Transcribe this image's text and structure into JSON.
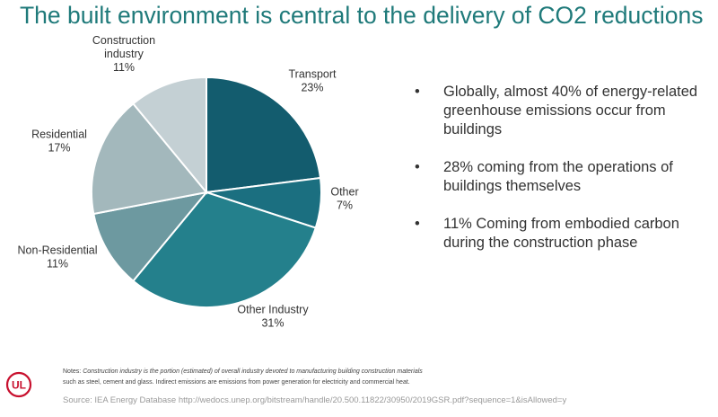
{
  "title": "The built environment is central to the delivery of CO2 reductions",
  "chart_data": {
    "type": "pie",
    "title": "",
    "slices": [
      {
        "name": "Transport",
        "value": 23,
        "label": "23%",
        "color": "#135c6e"
      },
      {
        "name": "Other",
        "value": 7,
        "label": "7%",
        "color": "#1b6f80"
      },
      {
        "name": "Other Industry",
        "value": 31,
        "label": "31%",
        "color": "#24808c"
      },
      {
        "name": "Non-Residential",
        "value": 11,
        "label": "11%",
        "color": "#6d99a0"
      },
      {
        "name": "Residential",
        "value": 17,
        "label": "17%",
        "color": "#a3b8bc"
      },
      {
        "name": "Construction industry",
        "value": 11,
        "label": "11%",
        "color": "#c4d0d4"
      }
    ]
  },
  "bullets": [
    "Globally, almost 40% of energy-related greenhouse emissions occur from buildings",
    "28% coming from the operations of buildings themselves",
    "11% Coming from embodied carbon during the construction phase"
  ],
  "bullet_symbol": "•",
  "notes_prefix": "Notes: ",
  "notes_emphasis": "Construction industry is the portion (estimated) of overall industry devoted to manufacturing building construction materials",
  "notes_rest": "such as steel, cement and glass. Indirect emissions are emissions from power generation for electricity and commercial heat.",
  "source": "Source: IEA Energy Database http://wedocs.unep.org/bitstream/handle/20.500.11822/30950/2019GSR.pdf?sequence=1&isAllowed=y",
  "logo_text": "UL",
  "logo_color": "#c8102e"
}
